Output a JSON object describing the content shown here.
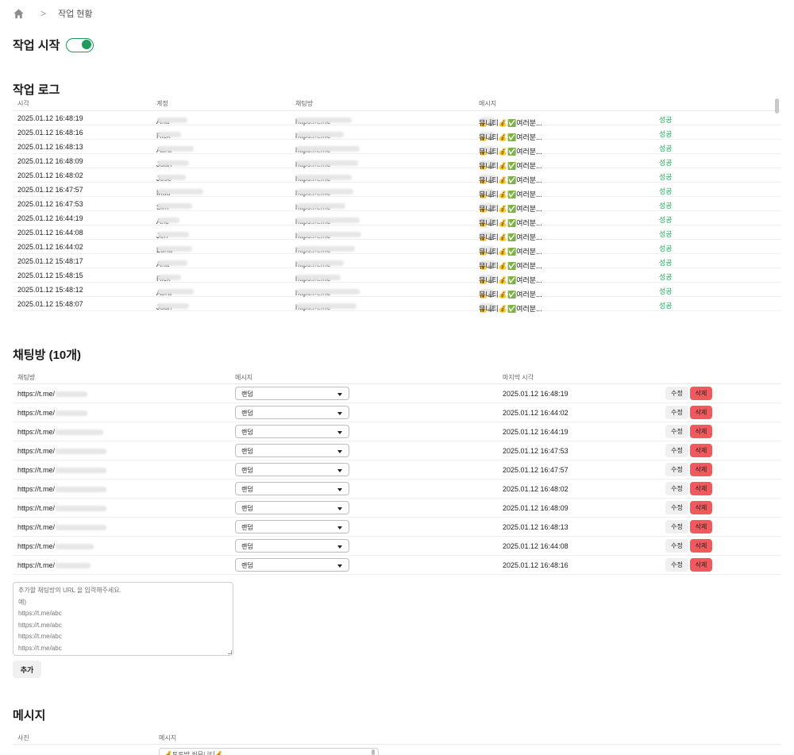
{
  "breadcrumb": {
    "separator": ">",
    "current": "작업 현황"
  },
  "work": {
    "title": "작업 시작",
    "toggle_on": true,
    "accent": "#1c9d5b"
  },
  "log": {
    "title": "작업 로그",
    "columns": [
      "시각",
      "계정",
      "채팅방",
      "메시지"
    ],
    "rows": [
      {
        "time": "2025.01.12 16:48:19",
        "account": "Ana",
        "room": "https://t.me",
        "msg_a": "💰토",
        "msg_b": "뮤니티💰✅여러분...",
        "status": "성공"
      },
      {
        "time": "2025.01.12 16:48:16",
        "account": "Rick",
        "room": "https://t.me",
        "msg_a": "💰토",
        "msg_b": "뮤니티💰✅여러분...",
        "status": "성공"
      },
      {
        "time": "2025.01.12 16:48:13",
        "account": "Abra",
        "room": "https://t.me",
        "msg_a": "💰토",
        "msg_b": "뮤니티💰✅여러분...",
        "status": "성공"
      },
      {
        "time": "2025.01.12 16:48:09",
        "account": "Juan",
        "room": "https://t.me",
        "msg_a": "💰토",
        "msg_b": "뮤니티💰✅여러분...",
        "status": "성공"
      },
      {
        "time": "2025.01.12 16:48:02",
        "account": "Jose",
        "room": "https://t.me",
        "msg_a": "💰토",
        "msg_b": "뮤니티💰✅여러분...",
        "status": "성공"
      },
      {
        "time": "2025.01.12 16:47:57",
        "account": "Mau",
        "room": "https://t.me",
        "msg_a": "💰토",
        "msg_b": "뮤니티💰✅여러분...",
        "status": "성공"
      },
      {
        "time": "2025.01.12 16:47:53",
        "account": "Sim",
        "room": "https://t.me",
        "msg_a": "💰토",
        "msg_b": "뮤니티💰✅여러분...",
        "status": "성공"
      },
      {
        "time": "2025.01.12 16:44:19",
        "account": "Arie",
        "room": "https://t.me",
        "msg_a": "💰토",
        "msg_b": "뮤니티💰✅여러분...",
        "status": "성공"
      },
      {
        "time": "2025.01.12 16:44:08",
        "account": "Jeri",
        "room": "https://t.me",
        "msg_a": "💰토",
        "msg_b": "뮤니티💰✅여러분...",
        "status": "성공"
      },
      {
        "time": "2025.01.12 16:44:02",
        "account": "Luna",
        "room": "https://t.me",
        "msg_a": "💰토",
        "msg_b": "뮤니티💰✅여러분...",
        "status": "성공"
      },
      {
        "time": "2025.01.12 15:48:17",
        "account": "Ana",
        "room": "https://t.me",
        "msg_a": "💰토",
        "msg_b": "뮤니티💰✅여러분...",
        "status": "성공"
      },
      {
        "time": "2025.01.12 15:48:15",
        "account": "Rick",
        "room": "https://t.me",
        "msg_a": "💰토",
        "msg_b": "뮤니티💰✅여러분...",
        "status": "성공"
      },
      {
        "time": "2025.01.12 15:48:12",
        "account": "Abra",
        "room": "https://t.me",
        "msg_a": "💰토",
        "msg_b": "뮤니티💰✅여러분...",
        "status": "성공"
      },
      {
        "time": "2025.01.12 15:48:07",
        "account": "Juan",
        "room": "https://t.me",
        "msg_a": "💰토",
        "msg_b": "뮤니티💰✅여러분...",
        "status": "성공"
      }
    ]
  },
  "rooms": {
    "title": "채팅방 (10개)",
    "columns": [
      "채팅방",
      "메시지",
      "마지막 시각"
    ],
    "edit_label": "수정",
    "delete_label": "삭제",
    "rows": [
      {
        "url": "https://t.me/",
        "message": "랜덤",
        "last": "2025.01.12 16:48:19"
      },
      {
        "url": "https://t.me/",
        "message": "랜덤",
        "last": "2025.01.12 16:44:02"
      },
      {
        "url": "https://t.me/",
        "message": "랜덤",
        "last": "2025.01.12 16:44:19"
      },
      {
        "url": "https://t.me/",
        "message": "랜덤",
        "last": "2025.01.12 16:47:53"
      },
      {
        "url": "https://t.me/",
        "message": "랜덤",
        "last": "2025.01.12 16:47:57"
      },
      {
        "url": "https://t.me/",
        "message": "랜덤",
        "last": "2025.01.12 16:48:02"
      },
      {
        "url": "https://t.me/",
        "message": "랜덤",
        "last": "2025.01.12 16:48:09"
      },
      {
        "url": "https://t.me/",
        "message": "랜덤",
        "last": "2025.01.12 16:48:13"
      },
      {
        "url": "https://t.me/",
        "message": "랜덤",
        "last": "2025.01.12 16:44:08"
      },
      {
        "url": "https://t.me/",
        "message": "랜덤",
        "last": "2025.01.12 16:48:16"
      }
    ],
    "add_placeholder": "추가할 채팅방의 URL 을 입력해주세요.\n예)\nhttps://t.me/abc\nhttps://t.me/abc\nhttps://t.me/abc\nhttps://t.me/abc",
    "add_label": "추가"
  },
  "messages": {
    "title": "메시지",
    "columns": [
      "사진",
      "메시지"
    ],
    "first_text": "💰토토방 커뮤니티💰"
  },
  "colors": {
    "success": "#2aa55c",
    "danger": "#f05a5e"
  }
}
